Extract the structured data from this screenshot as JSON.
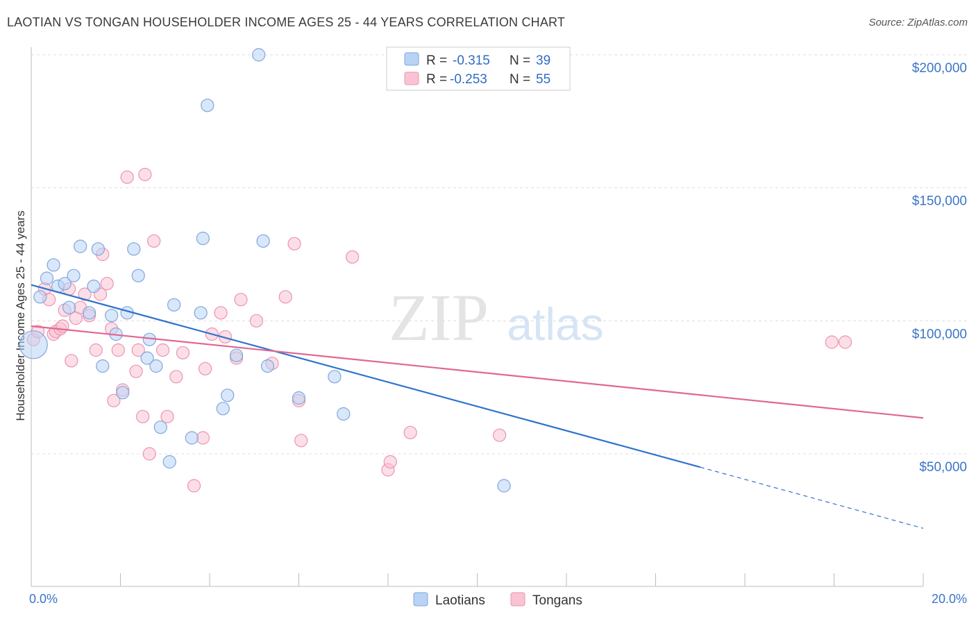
{
  "title": "LAOTIAN VS TONGAN HOUSEHOLDER INCOME AGES 25 - 44 YEARS CORRELATION CHART",
  "source": "Source: ZipAtlas.com",
  "watermark": {
    "zip": "ZIP",
    "atlas": "atlas"
  },
  "legend": {
    "rows": [
      {
        "r_label": "R =",
        "r_value": "-0.315",
        "n_label": "N =",
        "n_value": "39"
      },
      {
        "r_label": "R =",
        "r_value": "-0.253",
        "n_label": "N =",
        "n_value": "55"
      }
    ]
  },
  "bottom_legend": [
    "Laotians",
    "Tongans"
  ],
  "colors": {
    "laotian_fill": "#b9d3f5",
    "laotian_stroke": "#7ea6dc",
    "laotian_line": "#2e73cc",
    "tongan_fill": "#f9c3d3",
    "tongan_stroke": "#ec93b0",
    "tongan_line": "#e06791",
    "axis_label": "#3b74c8",
    "grid": "#dddddd"
  },
  "chart_data": {
    "type": "scatter",
    "title": "LAOTIAN VS TONGAN HOUSEHOLDER INCOME AGES 25 - 44 YEARS CORRELATION CHART",
    "xlabel": "",
    "ylabel": "Householder Income Ages 25 - 44 years",
    "xlim": [
      0,
      20
    ],
    "ylim": [
      0,
      210000
    ],
    "x_tick_labels": [
      "0.0%",
      "20.0%"
    ],
    "y_ticks": [
      50000,
      100000,
      150000,
      200000
    ],
    "y_tick_labels": [
      "$50,000",
      "$100,000",
      "$150,000",
      "$200,000"
    ],
    "grid": true,
    "legend_position": "top-center",
    "series": [
      {
        "name": "Laotians",
        "r": -0.315,
        "n": 39,
        "points": [
          [
            0.05,
            91000
          ],
          [
            0.2,
            109000
          ],
          [
            0.35,
            116000
          ],
          [
            0.5,
            121000
          ],
          [
            0.6,
            113000
          ],
          [
            0.75,
            114000
          ],
          [
            0.85,
            105000
          ],
          [
            0.95,
            117000
          ],
          [
            1.1,
            128000
          ],
          [
            1.3,
            103000
          ],
          [
            1.4,
            113000
          ],
          [
            1.5,
            127000
          ],
          [
            1.6,
            83000
          ],
          [
            1.8,
            102000
          ],
          [
            1.9,
            95000
          ],
          [
            2.05,
            73000
          ],
          [
            2.15,
            103000
          ],
          [
            2.3,
            127000
          ],
          [
            2.4,
            117000
          ],
          [
            2.6,
            86000
          ],
          [
            2.65,
            93000
          ],
          [
            2.8,
            83000
          ],
          [
            2.9,
            60000
          ],
          [
            3.1,
            47000
          ],
          [
            3.2,
            106000
          ],
          [
            3.6,
            56000
          ],
          [
            3.8,
            103000
          ],
          [
            3.85,
            131000
          ],
          [
            3.95,
            181000
          ],
          [
            4.3,
            67000
          ],
          [
            4.4,
            72000
          ],
          [
            4.6,
            87000
          ],
          [
            5.1,
            200000
          ],
          [
            5.2,
            130000
          ],
          [
            5.3,
            83000
          ],
          [
            6.0,
            71000
          ],
          [
            6.8,
            79000
          ],
          [
            7.0,
            65000
          ],
          [
            10.6,
            38000
          ]
        ],
        "trend": {
          "x0": 0,
          "y0": 113500,
          "x1": 15,
          "y1": 45000,
          "dash_to_x": 20,
          "dash_to_y": 22000
        }
      },
      {
        "name": "Tongans",
        "r": -0.253,
        "n": 55,
        "points": [
          [
            0.05,
            93000
          ],
          [
            0.15,
            96000
          ],
          [
            0.3,
            112000
          ],
          [
            0.4,
            108000
          ],
          [
            0.5,
            95000
          ],
          [
            0.55,
            96000
          ],
          [
            0.65,
            97000
          ],
          [
            0.7,
            98000
          ],
          [
            0.75,
            104000
          ],
          [
            0.85,
            112000
          ],
          [
            0.9,
            85000
          ],
          [
            1.0,
            101000
          ],
          [
            1.1,
            105000
          ],
          [
            1.2,
            110000
          ],
          [
            1.3,
            102000
          ],
          [
            1.45,
            89000
          ],
          [
            1.55,
            110000
          ],
          [
            1.6,
            125000
          ],
          [
            1.7,
            114000
          ],
          [
            1.8,
            97000
          ],
          [
            1.85,
            70000
          ],
          [
            1.95,
            89000
          ],
          [
            2.05,
            74000
          ],
          [
            2.15,
            154000
          ],
          [
            2.35,
            81000
          ],
          [
            2.4,
            89000
          ],
          [
            2.5,
            64000
          ],
          [
            2.55,
            155000
          ],
          [
            2.65,
            50000
          ],
          [
            2.75,
            130000
          ],
          [
            2.95,
            89000
          ],
          [
            3.05,
            64000
          ],
          [
            3.25,
            79000
          ],
          [
            3.4,
            88000
          ],
          [
            3.65,
            38000
          ],
          [
            3.85,
            56000
          ],
          [
            3.9,
            82000
          ],
          [
            4.05,
            95000
          ],
          [
            4.25,
            103000
          ],
          [
            4.35,
            94000
          ],
          [
            4.6,
            86000
          ],
          [
            4.7,
            108000
          ],
          [
            5.05,
            100000
          ],
          [
            5.4,
            84000
          ],
          [
            5.7,
            109000
          ],
          [
            5.9,
            129000
          ],
          [
            6.0,
            70000
          ],
          [
            6.05,
            55000
          ],
          [
            7.2,
            124000
          ],
          [
            8.0,
            44000
          ],
          [
            8.05,
            47000
          ],
          [
            8.5,
            58000
          ],
          [
            10.5,
            57000
          ],
          [
            17.95,
            92000
          ],
          [
            18.25,
            92000
          ]
        ],
        "trend": {
          "x0": 0,
          "y0": 98000,
          "x1": 20,
          "y1": 63500
        }
      }
    ]
  }
}
